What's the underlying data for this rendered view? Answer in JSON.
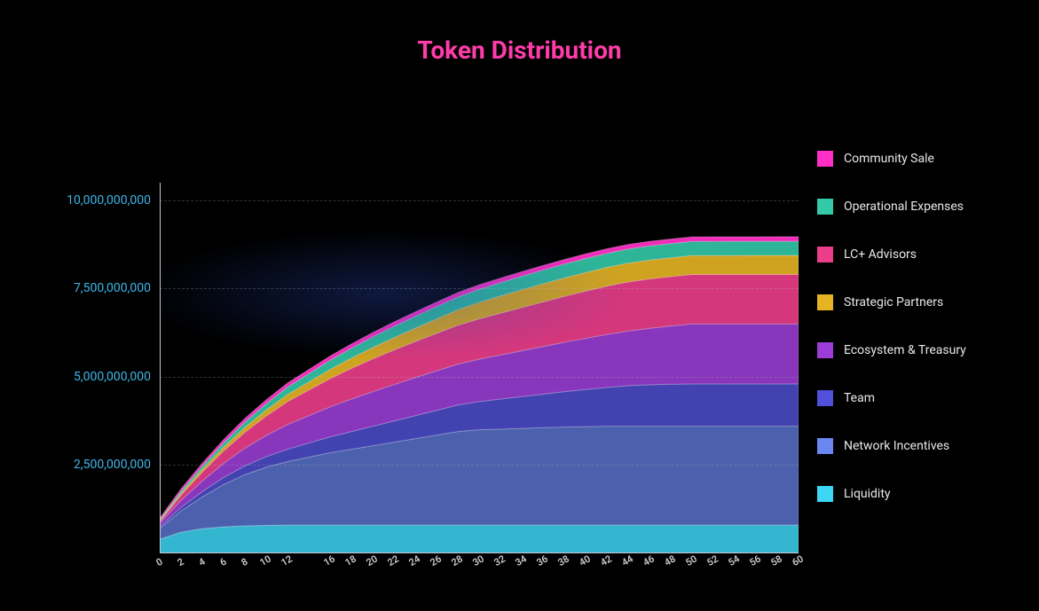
{
  "title": "Token Distribution",
  "title_color": "#ff3caa",
  "background_color": "#000000",
  "axis_color": "#c8c8d0",
  "ylabel_color": "#3db6e8",
  "grid_color": "rgba(200,200,200,0.25)",
  "chart": {
    "type": "area",
    "ylim": [
      0,
      10500000000
    ],
    "ytick_step": 2500000000,
    "yticks": [
      {
        "v": 2500000000,
        "label": "2,500,000,000"
      },
      {
        "v": 5000000000,
        "label": "5,000,000,000"
      },
      {
        "v": 7500000000,
        "label": "7,500,000,000"
      },
      {
        "v": 10000000000,
        "label": "10,000,000,000"
      }
    ],
    "x_values": [
      0,
      2,
      4,
      6,
      8,
      10,
      12,
      16,
      18,
      20,
      22,
      24,
      26,
      28,
      30,
      32,
      34,
      36,
      38,
      40,
      42,
      44,
      46,
      48,
      50,
      52,
      54,
      56,
      58,
      60
    ],
    "series": [
      {
        "name": "Liquidity",
        "color": "#3dd6f5",
        "opacity": 0.85,
        "y": [
          400000000,
          600000000,
          700000000,
          750000000,
          780000000,
          790000000,
          800000000,
          800000000,
          800000000,
          800000000,
          800000000,
          800000000,
          800000000,
          800000000,
          800000000,
          800000000,
          800000000,
          800000000,
          800000000,
          800000000,
          800000000,
          800000000,
          800000000,
          800000000,
          800000000,
          800000000,
          800000000,
          800000000,
          800000000,
          800000000
        ]
      },
      {
        "name": "Network Incentives",
        "color": "#6a86f0",
        "opacity": 0.72,
        "y": [
          300000000,
          600000000,
          900000000,
          1200000000,
          1450000000,
          1650000000,
          1800000000,
          2050000000,
          2150000000,
          2250000000,
          2350000000,
          2450000000,
          2550000000,
          2650000000,
          2700000000,
          2720000000,
          2740000000,
          2760000000,
          2780000000,
          2790000000,
          2800000000,
          2800000000,
          2800000000,
          2800000000,
          2800000000,
          2800000000,
          2800000000,
          2800000000,
          2800000000,
          2800000000
        ]
      },
      {
        "name": "Team",
        "color": "#5050d8",
        "opacity": 0.82,
        "y": [
          50000000,
          100000000,
          150000000,
          200000000,
          250000000,
          300000000,
          350000000,
          450000000,
          500000000,
          550000000,
          600000000,
          650000000,
          700000000,
          750000000,
          800000000,
          850000000,
          900000000,
          950000000,
          1000000000,
          1050000000,
          1100000000,
          1150000000,
          1175000000,
          1190000000,
          1200000000,
          1200000000,
          1200000000,
          1200000000,
          1200000000,
          1200000000
        ]
      },
      {
        "name": "Ecosystem & Treasury",
        "color": "#9b3dd6",
        "opacity": 0.88,
        "y": [
          100000000,
          200000000,
          300000000,
          400000000,
          500000000,
          600000000,
          700000000,
          850000000,
          920000000,
          980000000,
          1030000000,
          1080000000,
          1120000000,
          1160000000,
          1200000000,
          1250000000,
          1300000000,
          1350000000,
          1400000000,
          1450000000,
          1500000000,
          1550000000,
          1600000000,
          1650000000,
          1700000000,
          1700000000,
          1700000000,
          1700000000,
          1700000000,
          1700000000
        ]
      },
      {
        "name": "LC+ Advisors",
        "color": "#eb3d8a",
        "opacity": 0.9,
        "y": [
          50000000,
          150000000,
          250000000,
          350000000,
          450000000,
          550000000,
          650000000,
          800000000,
          870000000,
          930000000,
          980000000,
          1020000000,
          1060000000,
          1100000000,
          1140000000,
          1180000000,
          1220000000,
          1260000000,
          1300000000,
          1340000000,
          1370000000,
          1390000000,
          1400000000,
          1400000000,
          1400000000,
          1400000000,
          1400000000,
          1400000000,
          1400000000,
          1400000000
        ]
      },
      {
        "name": "Strategic Partners",
        "color": "#e6b423",
        "opacity": 0.9,
        "y": [
          20000000,
          50000000,
          80000000,
          110000000,
          140000000,
          170000000,
          200000000,
          260000000,
          290000000,
          320000000,
          350000000,
          380000000,
          410000000,
          440000000,
          470000000,
          490000000,
          505000000,
          515000000,
          522000000,
          527000000,
          530000000,
          532000000,
          534000000,
          535000000,
          536000000,
          537000000,
          538000000,
          539000000,
          540000000,
          540000000
        ]
      },
      {
        "name": "Operational Expenses",
        "color": "#33c9a7",
        "opacity": 0.9,
        "y": [
          30000000,
          60000000,
          90000000,
          120000000,
          150000000,
          180000000,
          210000000,
          260000000,
          280000000,
          300000000,
          320000000,
          335000000,
          350000000,
          360000000,
          370000000,
          378000000,
          384000000,
          389000000,
          393000000,
          396000000,
          398000000,
          399000000,
          400000000,
          400000000,
          400000000,
          400000000,
          400000000,
          400000000,
          400000000,
          400000000
        ]
      },
      {
        "name": "Community Sale",
        "color": "#ff2ec4",
        "opacity": 0.95,
        "y": [
          50000000,
          70000000,
          85000000,
          96000000,
          104000000,
          110000000,
          115000000,
          120000000,
          122000000,
          124000000,
          125000000,
          126000000,
          127000000,
          128000000,
          129000000,
          130000000,
          130000000,
          130000000,
          130000000,
          130000000,
          130000000,
          130000000,
          130000000,
          130000000,
          130000000,
          130000000,
          130000000,
          130000000,
          130000000,
          130000000
        ]
      }
    ]
  },
  "legend": [
    {
      "label": "Community Sale",
      "color": "#ff2ec4"
    },
    {
      "label": "Operational Expenses",
      "color": "#33c9a7"
    },
    {
      "label": "LC+ Advisors",
      "color": "#eb3d8a"
    },
    {
      "label": "Strategic Partners",
      "color": "#e6b423"
    },
    {
      "label": "Ecosystem & Treasury",
      "color": "#9b3dd6"
    },
    {
      "label": "Team",
      "color": "#5050d8"
    },
    {
      "label": "Network Incentives",
      "color": "#6a86f0"
    },
    {
      "label": "Liquidity",
      "color": "#3dd6f5"
    }
  ]
}
